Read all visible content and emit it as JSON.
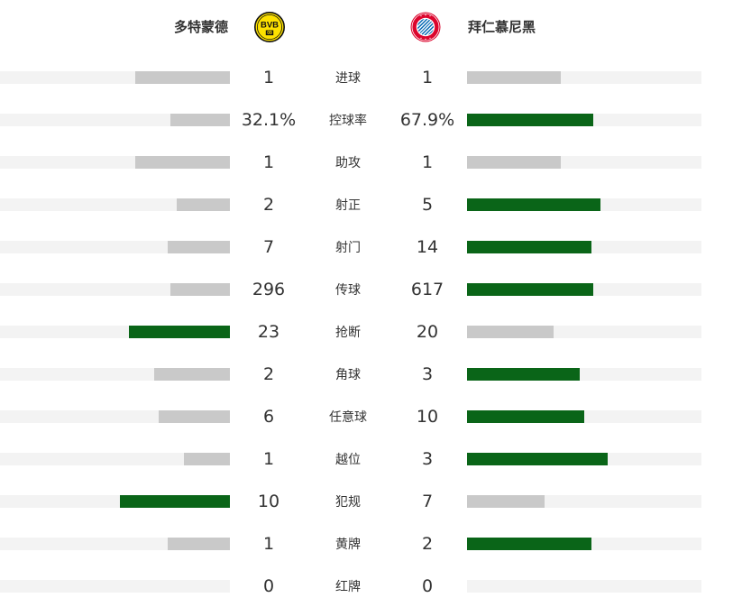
{
  "teams": {
    "home": {
      "name": "多特蒙德",
      "logo_icon": "bvb-crest-icon",
      "logo_text": "BVB",
      "logo_year": "09",
      "color": "#FDE100"
    },
    "away": {
      "name": "拜仁慕尼黑",
      "logo_icon": "fc-bayern-crest-icon",
      "color": "#DC052D"
    }
  },
  "colors": {
    "lead_bar": "#0A6518",
    "trail_bar": "#C9C9C9",
    "track": "#F3F3F3"
  },
  "stats": [
    {
      "label": "进球",
      "home": "1",
      "away": "1",
      "home_fill": 0.41,
      "away_fill": 0.4,
      "leader": "none"
    },
    {
      "label": "控球率",
      "home": "32.1%",
      "away": "67.9%",
      "home_fill": 0.26,
      "away_fill": 0.54,
      "leader": "away"
    },
    {
      "label": "助攻",
      "home": "1",
      "away": "1",
      "home_fill": 0.41,
      "away_fill": 0.4,
      "leader": "none"
    },
    {
      "label": "射正",
      "home": "2",
      "away": "5",
      "home_fill": 0.23,
      "away_fill": 0.57,
      "leader": "away"
    },
    {
      "label": "射门",
      "home": "7",
      "away": "14",
      "home_fill": 0.27,
      "away_fill": 0.53,
      "leader": "away"
    },
    {
      "label": "传球",
      "home": "296",
      "away": "617",
      "home_fill": 0.26,
      "away_fill": 0.54,
      "leader": "away"
    },
    {
      "label": "抢断",
      "home": "23",
      "away": "20",
      "home_fill": 0.44,
      "away_fill": 0.37,
      "leader": "home"
    },
    {
      "label": "角球",
      "home": "2",
      "away": "3",
      "home_fill": 0.33,
      "away_fill": 0.48,
      "leader": "away"
    },
    {
      "label": "任意球",
      "home": "6",
      "away": "10",
      "home_fill": 0.31,
      "away_fill": 0.5,
      "leader": "away"
    },
    {
      "label": "越位",
      "home": "1",
      "away": "3",
      "home_fill": 0.2,
      "away_fill": 0.6,
      "leader": "away"
    },
    {
      "label": "犯规",
      "home": "10",
      "away": "7",
      "home_fill": 0.48,
      "away_fill": 0.33,
      "leader": "home"
    },
    {
      "label": "黄牌",
      "home": "1",
      "away": "2",
      "home_fill": 0.27,
      "away_fill": 0.53,
      "leader": "away"
    },
    {
      "label": "红牌",
      "home": "0",
      "away": "0",
      "home_fill": 0.0,
      "away_fill": 0.0,
      "leader": "none"
    }
  ]
}
